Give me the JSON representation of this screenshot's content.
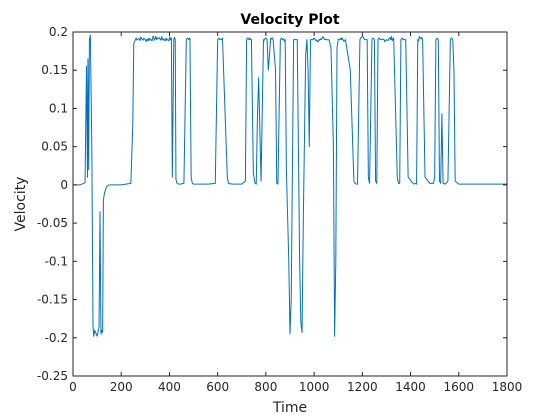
{
  "chart_data": {
    "type": "line",
    "title": "Velocity Plot",
    "xlabel": "Time",
    "ylabel": "Velocity",
    "xlim": [
      0,
      1800
    ],
    "ylim": [
      -0.25,
      0.2
    ],
    "xticks": [
      0,
      200,
      400,
      600,
      800,
      1000,
      1200,
      1400,
      1600,
      1800
    ],
    "xtick_labels": [
      "0",
      "200",
      "400",
      "600",
      "800",
      "1000",
      "1200",
      "1400",
      "1600",
      "1800"
    ],
    "yticks": [
      -0.25,
      -0.2,
      -0.15,
      -0.1,
      -0.05,
      0,
      0.05,
      0.1,
      0.15,
      0.2
    ],
    "ytick_labels": [
      "-0.25",
      "-0.2",
      "-0.15",
      "-0.1",
      "-0.05",
      "0",
      "0.05",
      "0.1",
      "0.15",
      "0.2"
    ],
    "grid": false,
    "line_color": "#0072BD",
    "series": [
      {
        "x": [
          0,
          30,
          50,
          56,
          60,
          62,
          65,
          68,
          72,
          78,
          83,
          86,
          90,
          95,
          100,
          108,
          112,
          116,
          120,
          123,
          126,
          130,
          135,
          140,
          150,
          200,
          240,
          248,
          252,
          262,
          300,
          350,
          392,
          408,
          412,
          418,
          421,
          424,
          427,
          430,
          433,
          437,
          445,
          460,
          470,
          475,
          480,
          485,
          490,
          495,
          500,
          505,
          515,
          530,
          560,
          590,
          600,
          605,
          610,
          615,
          620,
          640,
          645,
          660,
          700,
          715,
          720,
          725,
          730,
          740,
          748,
          755,
          760,
          765,
          770,
          780,
          790,
          800,
          805,
          810,
          820,
          830,
          840,
          845,
          850,
          860,
          865,
          870,
          880,
          885,
          895,
          900,
          905,
          915,
          920,
          925,
          930,
          940,
          945,
          950,
          955,
          965,
          970,
          975,
          980,
          985,
          990,
          995,
          1000,
          1005,
          1020,
          1030,
          1040,
          1050,
          1060,
          1070,
          1080,
          1085,
          1090,
          1095,
          1100,
          1110,
          1120,
          1130,
          1150,
          1165,
          1170,
          1175,
          1180,
          1190,
          1205,
          1210,
          1215,
          1220,
          1225,
          1230,
          1240,
          1250,
          1255,
          1260,
          1265,
          1270,
          1275,
          1280,
          1290,
          1300,
          1330,
          1345,
          1350,
          1355,
          1360,
          1365,
          1370,
          1380,
          1390,
          1410,
          1415,
          1420,
          1425,
          1430,
          1440,
          1450,
          1460,
          1480,
          1495,
          1500,
          1505,
          1510,
          1515,
          1520,
          1525,
          1530,
          1535,
          1545,
          1555,
          1565,
          1570,
          1575,
          1580,
          1585,
          1600,
          1650,
          1700,
          1800
        ],
        "y": [
          0,
          0,
          0.003,
          0.155,
          0.01,
          0.165,
          0.02,
          0.19,
          0.196,
          0.05,
          -0.185,
          -0.198,
          -0.19,
          -0.194,
          -0.198,
          -0.186,
          -0.035,
          -0.195,
          -0.19,
          -0.193,
          -0.02,
          -0.012,
          -0.006,
          -0.002,
          0,
          0,
          0.002,
          0.08,
          0.185,
          0.192,
          0.19,
          0.192,
          0.19,
          0.192,
          0.01,
          0.19,
          0.193,
          0.19,
          0.008,
          0.003,
          0.002,
          0.001,
          0.001,
          0.002,
          0.19,
          0.192,
          0.19,
          0.192,
          0.01,
          0.002,
          0.001,
          0.001,
          0.001,
          0.001,
          0.001,
          0.002,
          0.19,
          0.192,
          0.19,
          0.19,
          0.192,
          0.01,
          0.002,
          0.001,
          0.001,
          0.005,
          0.19,
          0.192,
          0.19,
          0.19,
          0.015,
          0.002,
          0.001,
          0.09,
          0.14,
          0.005,
          0.19,
          0.192,
          0.19,
          0.15,
          0.192,
          0.19,
          0.15,
          0.002,
          0.001,
          0.19,
          0.192,
          0.19,
          0.19,
          0.02,
          -0.1,
          -0.195,
          -0.15,
          0.19,
          0.19,
          0.19,
          0.19,
          -0.1,
          -0.18,
          -0.193,
          -0.05,
          0.17,
          0.19,
          0.15,
          0.05,
          0.19,
          0.19,
          0.19,
          0.192,
          0.19,
          0.19,
          0.19,
          0.192,
          0.19,
          0.19,
          0.18,
          0.05,
          -0.198,
          -0.1,
          0.18,
          0.19,
          0.192,
          0.19,
          0.19,
          0.15,
          0.005,
          0.002,
          0.001,
          0.001,
          0.19,
          0.192,
          0.19,
          0.19,
          0.19,
          0.01,
          0.002,
          0.19,
          0.19,
          0.005,
          0.002,
          0.19,
          0.192,
          0.19,
          0.19,
          0.19,
          0.19,
          0.192,
          0.01,
          0.002,
          0.002,
          0.19,
          0.192,
          0.19,
          0.19,
          0.01,
          0.002,
          0.001,
          0.002,
          0.001,
          0.19,
          0.192,
          0.19,
          0.01,
          0.002,
          0.002,
          0.01,
          0.19,
          0.192,
          0.19,
          0.005,
          0.002,
          0.093,
          0.002,
          0.001,
          0.005,
          0.19,
          0.192,
          0.19,
          0.15,
          0.005,
          0.001,
          0.001,
          0.001,
          0.001
        ],
        "noisy_plateaus": true
      }
    ]
  }
}
